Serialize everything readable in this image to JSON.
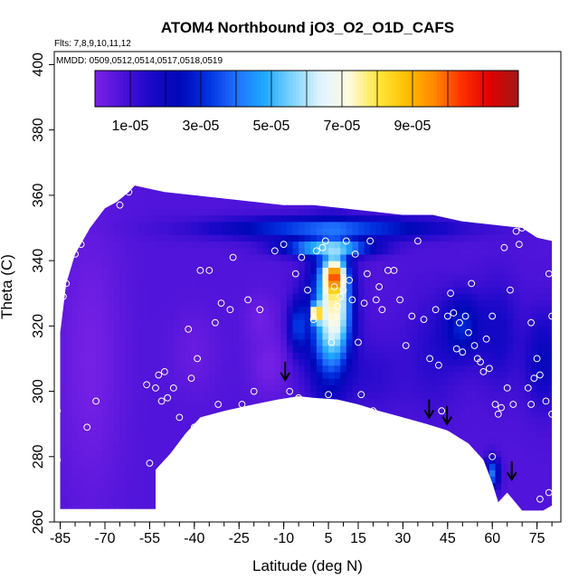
{
  "chart_data": {
    "type": "heatmap",
    "title": "ATOM4 Northbound jO3_O2_O1D_CAFS",
    "annotations": {
      "flights": "Flts: 7,8,9,10,11,12",
      "dates": "MMDD: 0509,0512,0514,0517,0518,0519"
    },
    "xlabel": "Latitude (deg N)",
    "ylabel": "Theta (C)",
    "xlim": [
      -87,
      83
    ],
    "ylim": [
      260,
      404
    ],
    "xticks": [
      -85,
      -70,
      -55,
      -40,
      -25,
      -10,
      5,
      15,
      30,
      45,
      60,
      75
    ],
    "xtick_labels": [
      "-85",
      "-70",
      "-55",
      "-40",
      "-25",
      "-10",
      "5",
      "15",
      "30",
      "45",
      "60",
      "75"
    ],
    "yticks": [
      260,
      280,
      300,
      320,
      340,
      360,
      380,
      400
    ],
    "ytick_labels": [
      "260",
      "280",
      "300",
      "320",
      "340",
      "360",
      "380",
      "400"
    ],
    "grid": false,
    "colorbar": {
      "orientation": "horizontal",
      "placement": "top-inside",
      "range": [
        0,
        0.00012
      ],
      "ticks": [
        1e-05,
        3e-05,
        5e-05,
        7e-05,
        9e-05
      ],
      "tick_labels": [
        "1e-05",
        "3e-05",
        "5e-05",
        "7e-05",
        "9e-05"
      ],
      "colors": [
        "#7b22e6",
        "#4a12d8",
        "#1a08c8",
        "#0008b8",
        "#0030e0",
        "#2070ff",
        "#1ea8ff",
        "#7fd4ff",
        "#e0f4ff",
        "#fffae0",
        "#ffe840",
        "#ffc000",
        "#ff8a00",
        "#ff3000",
        "#e00000",
        "#a01818"
      ]
    },
    "top_boundary": [
      [
        -85,
        318
      ],
      [
        -83,
        333
      ],
      [
        -80,
        342
      ],
      [
        -75,
        350
      ],
      [
        -70,
        356
      ],
      [
        -66,
        358
      ],
      [
        -62,
        361
      ],
      [
        -60,
        363
      ],
      [
        -55,
        362
      ],
      [
        -50,
        361
      ],
      [
        -40,
        360
      ],
      [
        -30,
        359
      ],
      [
        -20,
        358
      ],
      [
        -10,
        357
      ],
      [
        0,
        357
      ],
      [
        10,
        356
      ],
      [
        20,
        355
      ],
      [
        30,
        354
      ],
      [
        40,
        354
      ],
      [
        50,
        352
      ],
      [
        60,
        351
      ],
      [
        70,
        350
      ],
      [
        75,
        347
      ],
      [
        80,
        346
      ]
    ],
    "bottom_boundary": [
      [
        -85,
        264
      ],
      [
        -70,
        264
      ],
      [
        -53,
        264
      ],
      [
        -53,
        276
      ],
      [
        -48,
        281
      ],
      [
        -43,
        287
      ],
      [
        -38,
        292
      ],
      [
        -30,
        294
      ],
      [
        -20,
        296
      ],
      [
        -12,
        297.5
      ],
      [
        -5,
        298.5
      ],
      [
        0,
        298
      ],
      [
        8,
        297.5
      ],
      [
        15,
        296
      ],
      [
        22,
        294
      ],
      [
        30,
        292
      ],
      [
        38,
        290
      ],
      [
        45,
        288
      ],
      [
        52,
        284
      ],
      [
        57,
        279
      ],
      [
        60,
        272
      ],
      [
        62,
        266
      ],
      [
        65,
        269
      ],
      [
        70,
        263.5
      ],
      [
        77,
        263.5
      ],
      [
        80,
        265
      ]
    ],
    "field_regions": [
      {
        "kind": "base",
        "value": 7e-06
      },
      {
        "kind": "ellipse",
        "center": [
          -75,
          310
        ],
        "radii": [
          14,
          55
        ],
        "value": 1e-06
      },
      {
        "kind": "ellipse",
        "center": [
          -40,
          312
        ],
        "radii": [
          10,
          16
        ],
        "value": 3e-06
      },
      {
        "kind": "ellipse",
        "center": [
          -18,
          322
        ],
        "radii": [
          7,
          10
        ],
        "value": 2e-06
      },
      {
        "kind": "ellipse",
        "center": [
          -15,
          308
        ],
        "radii": [
          8,
          12
        ],
        "value": 1e-06
      },
      {
        "kind": "ellipse",
        "center": [
          20,
          305
        ],
        "radii": [
          14,
          14
        ],
        "value": 1.3e-05
      },
      {
        "kind": "ellipse",
        "center": [
          40,
          312
        ],
        "radii": [
          12,
          22
        ],
        "value": 1.4e-05
      },
      {
        "kind": "ellipse",
        "center": [
          62,
          318
        ],
        "radii": [
          9,
          20
        ],
        "value": 1.8e-05
      },
      {
        "kind": "ellipse",
        "center": [
          50,
          320
        ],
        "radii": [
          8,
          12
        ],
        "value": 3e-05
      },
      {
        "kind": "ellipse",
        "center": [
          77,
          310
        ],
        "radii": [
          8,
          18
        ],
        "value": 2.2e-05
      },
      {
        "kind": "ellipse",
        "center": [
          5,
          350
        ],
        "radii": [
          45,
          4
        ],
        "value": 4e-05
      },
      {
        "kind": "ellipse",
        "center": [
          5,
          344
        ],
        "radii": [
          18,
          3
        ],
        "value": 6.2e-05
      },
      {
        "kind": "ellipse",
        "center": [
          5,
          322
        ],
        "radii": [
          9,
          26
        ],
        "value": 4.5e-05
      },
      {
        "kind": "ellipse",
        "center": [
          7,
          326
        ],
        "radii": [
          6,
          18
        ],
        "value": 7.5e-05
      },
      {
        "kind": "ellipse",
        "center": [
          7,
          335
        ],
        "radii": [
          4,
          6
        ],
        "value": 0.000105
      },
      {
        "kind": "ellipse",
        "center": [
          1,
          324
        ],
        "radii": [
          2,
          3
        ],
        "value": 0.000108
      },
      {
        "kind": "ellipse",
        "center": [
          -5,
          320
        ],
        "radii": [
          4,
          10
        ],
        "value": 3.5e-05
      },
      {
        "kind": "ellipse",
        "center": [
          60,
          275
        ],
        "radii": [
          3,
          6
        ],
        "value": 4e-05
      }
    ],
    "sample_points": [
      [
        -86,
        294
      ],
      [
        -86,
        279
      ],
      [
        -84,
        329
      ],
      [
        -83,
        333
      ],
      [
        -80,
        342
      ],
      [
        -78,
        345
      ],
      [
        -76,
        289
      ],
      [
        -73,
        297
      ],
      [
        -65,
        357
      ],
      [
        -62,
        361
      ],
      [
        -56,
        302
      ],
      [
        -55,
        278
      ],
      [
        -53,
        301
      ],
      [
        -52,
        305
      ],
      [
        -51,
        297
      ],
      [
        -50,
        306
      ],
      [
        -49,
        298
      ],
      [
        -47,
        301
      ],
      [
        -46,
        280
      ],
      [
        -45,
        292
      ],
      [
        -42,
        319
      ],
      [
        -41,
        304
      ],
      [
        -40,
        289
      ],
      [
        -39,
        310
      ],
      [
        -38,
        337
      ],
      [
        -35,
        337
      ],
      [
        -33,
        321
      ],
      [
        -32,
        296
      ],
      [
        -31,
        327
      ],
      [
        -28,
        325
      ],
      [
        -27,
        341
      ],
      [
        -24,
        296
      ],
      [
        -22,
        328
      ],
      [
        -20,
        300
      ],
      [
        -18,
        325
      ],
      [
        -15,
        289
      ],
      [
        -13,
        343
      ],
      [
        -10,
        345
      ],
      [
        -8,
        300
      ],
      [
        -5,
        298
      ],
      [
        -6,
        336
      ],
      [
        -4,
        341
      ],
      [
        -2,
        331
      ],
      [
        0,
        322
      ],
      [
        1,
        343
      ],
      [
        3,
        344
      ],
      [
        4,
        346
      ],
      [
        5,
        299
      ],
      [
        6,
        315
      ],
      [
        7,
        332
      ],
      [
        8,
        326
      ],
      [
        9,
        329
      ],
      [
        10,
        331
      ],
      [
        11,
        346
      ],
      [
        12,
        334
      ],
      [
        13,
        328
      ],
      [
        14,
        342
      ],
      [
        15,
        315
      ],
      [
        16,
        299
      ],
      [
        17,
        327
      ],
      [
        18,
        336
      ],
      [
        19,
        346
      ],
      [
        20,
        294
      ],
      [
        21,
        328
      ],
      [
        22,
        332
      ],
      [
        23,
        325
      ],
      [
        25,
        337
      ],
      [
        27,
        337
      ],
      [
        29,
        328
      ],
      [
        31,
        314
      ],
      [
        33,
        323
      ],
      [
        35,
        346
      ],
      [
        37,
        322
      ],
      [
        39,
        310
      ],
      [
        41,
        325
      ],
      [
        42,
        308
      ],
      [
        43,
        294
      ],
      [
        45,
        323
      ],
      [
        46,
        330
      ],
      [
        47,
        324
      ],
      [
        48,
        313
      ],
      [
        49,
        321
      ],
      [
        50,
        312
      ],
      [
        51,
        323
      ],
      [
        52,
        318
      ],
      [
        53,
        333
      ],
      [
        54,
        314
      ],
      [
        55,
        310
      ],
      [
        56,
        309
      ],
      [
        57,
        306
      ],
      [
        58,
        316
      ],
      [
        59,
        307
      ],
      [
        60,
        323
      ],
      [
        60,
        280
      ],
      [
        61,
        296
      ],
      [
        62,
        293
      ],
      [
        63,
        295
      ],
      [
        64,
        344
      ],
      [
        65,
        301
      ],
      [
        66,
        331
      ],
      [
        67,
        296
      ],
      [
        68,
        349
      ],
      [
        69,
        345
      ],
      [
        70,
        350
      ],
      [
        72,
        301
      ],
      [
        73,
        321
      ],
      [
        74,
        304
      ],
      [
        75,
        310
      ],
      [
        76,
        305
      ],
      [
        77,
        349
      ],
      [
        78,
        297
      ],
      [
        79,
        336
      ],
      [
        80,
        293
      ],
      [
        80,
        323
      ],
      [
        82,
        304
      ],
      [
        82,
        297
      ],
      [
        73,
        296
      ],
      [
        76,
        267
      ],
      [
        79,
        269
      ]
    ],
    "arrows": [
      [
        -9.5,
        303.5
      ],
      [
        38.8,
        292
      ],
      [
        44.8,
        290
      ],
      [
        66.5,
        273
      ]
    ]
  }
}
